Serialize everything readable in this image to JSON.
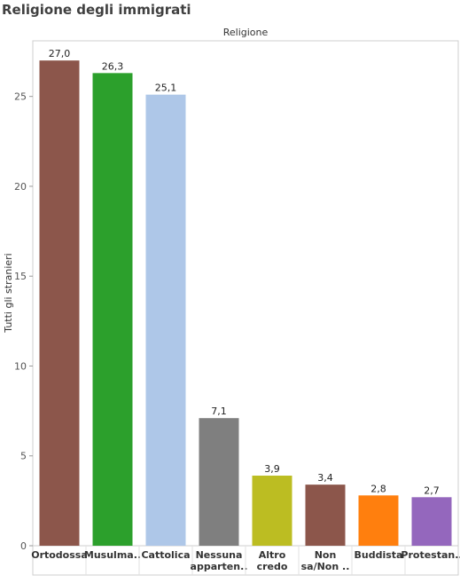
{
  "page": {
    "title": "Religione degli immigrati"
  },
  "chart_data": {
    "type": "bar",
    "title": "Religione degli immigrati",
    "column_header": "Religione",
    "ylabel": "Tutti gli stranieri",
    "xlabel": "",
    "ylim": [
      0,
      27.7
    ],
    "yticks": [
      0,
      5,
      10,
      15,
      20,
      25
    ],
    "grid": false,
    "categories": [
      [
        "Ortodossa"
      ],
      [
        "Musulma.."
      ],
      [
        "Cattolica"
      ],
      [
        "Nessuna",
        "apparten.."
      ],
      [
        "Altro",
        "credo"
      ],
      [
        "Non",
        "sa/Non .."
      ],
      [
        "Buddista"
      ],
      [
        "Protestan.."
      ]
    ],
    "values": [
      27.0,
      26.3,
      25.1,
      7.1,
      3.9,
      3.4,
      2.8,
      2.7
    ],
    "value_labels": [
      "27,0",
      "26,3",
      "25,1",
      "7,1",
      "3,9",
      "3,4",
      "2,8",
      "2,7"
    ],
    "colors": [
      "#8c564b",
      "#2ca02c",
      "#aec7e8",
      "#7f7f7f",
      "#bcbd22",
      "#8c564b",
      "#ff7f0e",
      "#9467bd"
    ]
  }
}
